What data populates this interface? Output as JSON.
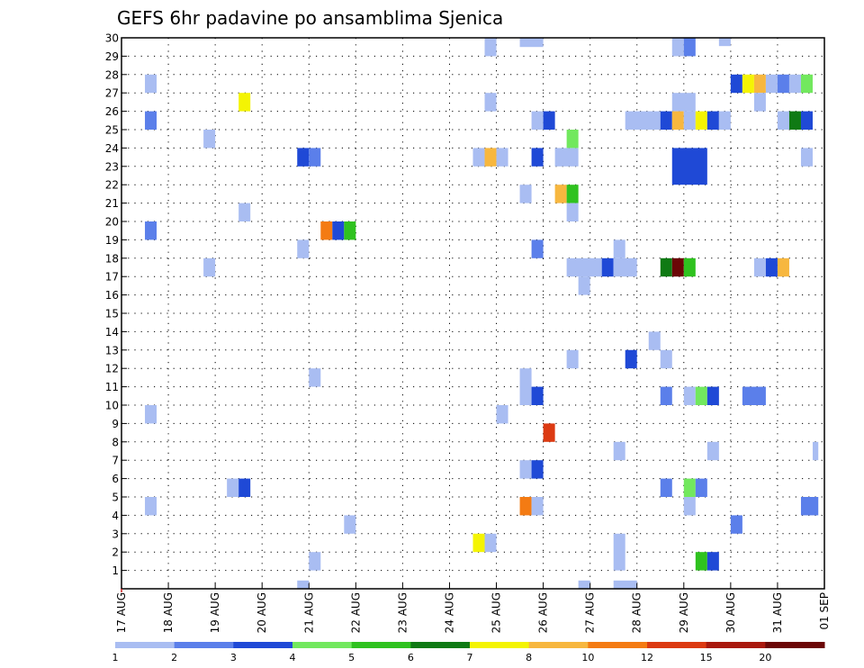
{
  "chart_data": {
    "type": "heatmap",
    "title": "GEFS 6hr padavine po ansamblima Sjenica",
    "x_ticks": [
      "17 AUG",
      "18 AUG",
      "19 AUG",
      "20 AUG",
      "21 AUG",
      "22 AUG",
      "23 AUG",
      "24 AUG",
      "25 AUG",
      "26 AUG",
      "27 AUG",
      "28 AUG",
      "29 AUG",
      "30 AUG",
      "31 AUG",
      "01 SEP"
    ],
    "y_ticks": [
      "1",
      "2",
      "3",
      "4",
      "5",
      "6",
      "7",
      "8",
      "9",
      "10",
      "11",
      "12",
      "13",
      "14",
      "15",
      "16",
      "17",
      "18",
      "19",
      "20",
      "21",
      "22",
      "23",
      "24",
      "25",
      "26",
      "27",
      "28",
      "29",
      "30"
    ],
    "x_unit": "days since 17 AUG",
    "ylim": [
      0,
      30
    ],
    "grid": true,
    "legend": {
      "placement": "bottom",
      "labels": [
        "1",
        "2",
        "3",
        "4",
        "5",
        "6",
        "7",
        "8",
        "10",
        "12",
        "15",
        "20"
      ],
      "colors": [
        "#a9bdf2",
        "#5b7fea",
        "#1f49d6",
        "#72e85e",
        "#2fc21f",
        "#0f7a14",
        "#f4f403",
        "#f7b73f",
        "#f47b13",
        "#dc3a12",
        "#a9190e",
        "#6b0707"
      ]
    },
    "cells": [
      {
        "x": 0.5,
        "y": 27,
        "w": 0.25,
        "h": 1,
        "color": "#a9bdf2"
      },
      {
        "x": 0.5,
        "y": 25,
        "w": 0.25,
        "h": 1,
        "color": "#5b7fea"
      },
      {
        "x": 0.5,
        "y": 19,
        "w": 0.25,
        "h": 1,
        "color": "#5b7fea"
      },
      {
        "x": 0.5,
        "y": 9,
        "w": 0.25,
        "h": 1,
        "color": "#a9bdf2"
      },
      {
        "x": 0.5,
        "y": 4,
        "w": 0.25,
        "h": 1,
        "color": "#a9bdf2"
      },
      {
        "x": 1.75,
        "y": 24,
        "w": 0.25,
        "h": 1,
        "color": "#a9bdf2"
      },
      {
        "x": 1.75,
        "y": 17,
        "w": 0.25,
        "h": 1,
        "color": "#a9bdf2"
      },
      {
        "x": 2.5,
        "y": 26,
        "w": 0.25,
        "h": 1,
        "color": "#f4f403"
      },
      {
        "x": 2.5,
        "y": 20,
        "w": 0.25,
        "h": 1,
        "color": "#a9bdf2"
      },
      {
        "x": 2.25,
        "y": 5,
        "w": 0.25,
        "h": 1,
        "color": "#a9bdf2"
      },
      {
        "x": 2.5,
        "y": 5,
        "w": 0.25,
        "h": 1,
        "color": "#1f49d6"
      },
      {
        "x": 3.75,
        "y": 23,
        "w": 0.25,
        "h": 1,
        "color": "#1f49d6"
      },
      {
        "x": 4.0,
        "y": 23,
        "w": 0.25,
        "h": 1,
        "color": "#5b7fea"
      },
      {
        "x": 3.75,
        "y": 18,
        "w": 0.25,
        "h": 1,
        "color": "#a9bdf2"
      },
      {
        "x": 4.25,
        "y": 19,
        "w": 0.25,
        "h": 1,
        "color": "#f47b13"
      },
      {
        "x": 4.5,
        "y": 19,
        "w": 0.25,
        "h": 1,
        "color": "#1f49d6"
      },
      {
        "x": 4.75,
        "y": 19,
        "w": 0.25,
        "h": 1,
        "color": "#2fc21f"
      },
      {
        "x": 4.0,
        "y": 11,
        "w": 0.25,
        "h": 1,
        "color": "#a9bdf2"
      },
      {
        "x": 4.75,
        "y": 3,
        "w": 0.25,
        "h": 1,
        "color": "#a9bdf2"
      },
      {
        "x": 4.0,
        "y": 1,
        "w": 0.25,
        "h": 1,
        "color": "#a9bdf2"
      },
      {
        "x": 3.75,
        "y": 0,
        "w": 0.25,
        "h": 0.45,
        "color": "#a9bdf2"
      },
      {
        "x": 7.75,
        "y": 29,
        "w": 0.25,
        "h": 1,
        "color": "#a9bdf2"
      },
      {
        "x": 7.75,
        "y": 26,
        "w": 0.25,
        "h": 1,
        "color": "#a9bdf2"
      },
      {
        "x": 7.5,
        "y": 23,
        "w": 0.25,
        "h": 1,
        "color": "#a9bdf2"
      },
      {
        "x": 7.75,
        "y": 23,
        "w": 0.25,
        "h": 1,
        "color": "#f7b73f"
      },
      {
        "x": 8.0,
        "y": 23,
        "w": 0.25,
        "h": 1,
        "color": "#a9bdf2"
      },
      {
        "x": 8.0,
        "y": 9,
        "w": 0.25,
        "h": 1,
        "color": "#a9bdf2"
      },
      {
        "x": 7.5,
        "y": 2,
        "w": 0.25,
        "h": 1,
        "color": "#f4f403"
      },
      {
        "x": 7.75,
        "y": 2,
        "w": 0.25,
        "h": 1,
        "color": "#a9bdf2"
      },
      {
        "x": 8.5,
        "y": 29.5,
        "w": 0.5,
        "h": 0.5,
        "color": "#a9bdf2"
      },
      {
        "x": 8.75,
        "y": 25,
        "w": 0.25,
        "h": 1,
        "color": "#a9bdf2"
      },
      {
        "x": 9.0,
        "y": 25,
        "w": 0.25,
        "h": 1,
        "color": "#1f49d6"
      },
      {
        "x": 8.75,
        "y": 23,
        "w": 0.25,
        "h": 1,
        "color": "#1f49d6"
      },
      {
        "x": 9.25,
        "y": 23,
        "w": 0.5,
        "h": 1,
        "color": "#a9bdf2"
      },
      {
        "x": 9.5,
        "y": 24,
        "w": 0.25,
        "h": 1,
        "color": "#72e85e"
      },
      {
        "x": 8.5,
        "y": 21,
        "w": 0.25,
        "h": 1,
        "color": "#a9bdf2"
      },
      {
        "x": 9.25,
        "y": 21,
        "w": 0.25,
        "h": 1,
        "color": "#f7b73f"
      },
      {
        "x": 9.5,
        "y": 21,
        "w": 0.25,
        "h": 1,
        "color": "#2fc21f"
      },
      {
        "x": 9.5,
        "y": 20,
        "w": 0.25,
        "h": 1,
        "color": "#a9bdf2"
      },
      {
        "x": 8.75,
        "y": 18,
        "w": 0.25,
        "h": 1,
        "color": "#5b7fea"
      },
      {
        "x": 9.5,
        "y": 17,
        "w": 0.75,
        "h": 1,
        "color": "#a9bdf2"
      },
      {
        "x": 10.25,
        "y": 17,
        "w": 0.25,
        "h": 1,
        "color": "#1f49d6"
      },
      {
        "x": 10.5,
        "y": 17,
        "w": 0.5,
        "h": 1,
        "color": "#a9bdf2"
      },
      {
        "x": 9.75,
        "y": 16,
        "w": 0.25,
        "h": 1,
        "color": "#a9bdf2"
      },
      {
        "x": 9.5,
        "y": 12,
        "w": 0.25,
        "h": 1,
        "color": "#a9bdf2"
      },
      {
        "x": 8.5,
        "y": 10,
        "w": 0.25,
        "h": 2,
        "color": "#a9bdf2"
      },
      {
        "x": 8.75,
        "y": 10,
        "w": 0.25,
        "h": 1,
        "color": "#1f49d6"
      },
      {
        "x": 9.0,
        "y": 8,
        "w": 0.25,
        "h": 1,
        "color": "#dc3a12"
      },
      {
        "x": 8.5,
        "y": 6,
        "w": 0.25,
        "h": 1,
        "color": "#a9bdf2"
      },
      {
        "x": 8.75,
        "y": 6,
        "w": 0.25,
        "h": 1,
        "color": "#1f49d6"
      },
      {
        "x": 8.5,
        "y": 4,
        "w": 0.25,
        "h": 1,
        "color": "#f47b13"
      },
      {
        "x": 8.75,
        "y": 4,
        "w": 0.25,
        "h": 1,
        "color": "#a9bdf2"
      },
      {
        "x": 9.75,
        "y": 0,
        "w": 0.25,
        "h": 0.45,
        "color": "#a9bdf2"
      },
      {
        "x": 10.5,
        "y": 18,
        "w": 0.25,
        "h": 1,
        "color": "#a9bdf2"
      },
      {
        "x": 10.5,
        "y": 7,
        "w": 0.25,
        "h": 1,
        "color": "#a9bdf2"
      },
      {
        "x": 10.5,
        "y": 1,
        "w": 0.25,
        "h": 2,
        "color": "#a9bdf2"
      },
      {
        "x": 10.5,
        "y": 0,
        "w": 0.5,
        "h": 0.45,
        "color": "#a9bdf2"
      },
      {
        "x": 10.75,
        "y": 12,
        "w": 0.25,
        "h": 1,
        "color": "#1f49d6"
      },
      {
        "x": 11.25,
        "y": 13,
        "w": 0.25,
        "h": 1,
        "color": "#a9bdf2"
      },
      {
        "x": 11.75,
        "y": 29,
        "w": 0.25,
        "h": 1,
        "color": "#a9bdf2"
      },
      {
        "x": 12.0,
        "y": 29,
        "w": 0.25,
        "h": 1,
        "color": "#5b7fea"
      },
      {
        "x": 11.75,
        "y": 26,
        "w": 0.5,
        "h": 1,
        "color": "#a9bdf2"
      },
      {
        "x": 10.75,
        "y": 25,
        "w": 0.75,
        "h": 1,
        "color": "#a9bdf2"
      },
      {
        "x": 11.5,
        "y": 25,
        "w": 0.25,
        "h": 1,
        "color": "#1f49d6"
      },
      {
        "x": 11.75,
        "y": 25,
        "w": 0.25,
        "h": 1,
        "color": "#f7b73f"
      },
      {
        "x": 12.0,
        "y": 25,
        "w": 0.25,
        "h": 1,
        "color": "#a9bdf2"
      },
      {
        "x": 12.25,
        "y": 25,
        "w": 0.25,
        "h": 1,
        "color": "#f4f403"
      },
      {
        "x": 12.5,
        "y": 25,
        "w": 0.25,
        "h": 1,
        "color": "#1f49d6"
      },
      {
        "x": 11.75,
        "y": 22,
        "w": 0.75,
        "h": 2,
        "color": "#1f49d6"
      },
      {
        "x": 11.5,
        "y": 17,
        "w": 0.25,
        "h": 1,
        "color": "#0f7a14"
      },
      {
        "x": 11.75,
        "y": 17,
        "w": 0.25,
        "h": 1,
        "color": "#6b0707"
      },
      {
        "x": 12.0,
        "y": 17,
        "w": 0.25,
        "h": 1,
        "color": "#2fc21f"
      },
      {
        "x": 11.5,
        "y": 12,
        "w": 0.25,
        "h": 1,
        "color": "#a9bdf2"
      },
      {
        "x": 11.5,
        "y": 10,
        "w": 0.25,
        "h": 1,
        "color": "#5b7fea"
      },
      {
        "x": 12.0,
        "y": 10,
        "w": 0.25,
        "h": 1,
        "color": "#a9bdf2"
      },
      {
        "x": 12.25,
        "y": 10,
        "w": 0.25,
        "h": 1,
        "color": "#72e85e"
      },
      {
        "x": 12.5,
        "y": 10,
        "w": 0.25,
        "h": 1,
        "color": "#1f49d6"
      },
      {
        "x": 12.5,
        "y": 7,
        "w": 0.25,
        "h": 1,
        "color": "#a9bdf2"
      },
      {
        "x": 11.5,
        "y": 5,
        "w": 0.25,
        "h": 1,
        "color": "#5b7fea"
      },
      {
        "x": 12.0,
        "y": 5,
        "w": 0.25,
        "h": 1,
        "color": "#72e85e"
      },
      {
        "x": 12.25,
        "y": 5,
        "w": 0.25,
        "h": 1,
        "color": "#5b7fea"
      },
      {
        "x": 12.0,
        "y": 4,
        "w": 0.25,
        "h": 1,
        "color": "#a9bdf2"
      },
      {
        "x": 12.25,
        "y": 1,
        "w": 0.25,
        "h": 1,
        "color": "#2fc21f"
      },
      {
        "x": 12.5,
        "y": 1,
        "w": 0.25,
        "h": 1,
        "color": "#1f49d6"
      },
      {
        "x": 12.75,
        "y": 29.55,
        "w": 0.25,
        "h": 0.45,
        "color": "#a9bdf2"
      },
      {
        "x": 13.0,
        "y": 27,
        "w": 0.25,
        "h": 1,
        "color": "#1f49d6"
      },
      {
        "x": 13.25,
        "y": 27,
        "w": 0.25,
        "h": 1,
        "color": "#f4f403"
      },
      {
        "x": 13.5,
        "y": 27,
        "w": 0.25,
        "h": 1,
        "color": "#f7b73f"
      },
      {
        "x": 13.75,
        "y": 27,
        "w": 0.25,
        "h": 1,
        "color": "#a9bdf2"
      },
      {
        "x": 14.0,
        "y": 27,
        "w": 0.25,
        "h": 1,
        "color": "#5b7fea"
      },
      {
        "x": 14.25,
        "y": 27,
        "w": 0.25,
        "h": 1,
        "color": "#a9bdf2"
      },
      {
        "x": 14.5,
        "y": 27,
        "w": 0.25,
        "h": 1,
        "color": "#72e85e"
      },
      {
        "x": 13.5,
        "y": 26,
        "w": 0.25,
        "h": 1,
        "color": "#a9bdf2"
      },
      {
        "x": 12.75,
        "y": 25,
        "w": 0.25,
        "h": 1,
        "color": "#a9bdf2"
      },
      {
        "x": 14.0,
        "y": 25,
        "w": 0.25,
        "h": 1,
        "color": "#a9bdf2"
      },
      {
        "x": 14.25,
        "y": 25,
        "w": 0.25,
        "h": 1,
        "color": "#0f7a14"
      },
      {
        "x": 14.5,
        "y": 25,
        "w": 0.25,
        "h": 1,
        "color": "#1f49d6"
      },
      {
        "x": 14.5,
        "y": 23,
        "w": 0.25,
        "h": 1,
        "color": "#a9bdf2"
      },
      {
        "x": 13.5,
        "y": 17,
        "w": 0.25,
        "h": 1,
        "color": "#a9bdf2"
      },
      {
        "x": 13.75,
        "y": 17,
        "w": 0.25,
        "h": 1,
        "color": "#1f49d6"
      },
      {
        "x": 14.0,
        "y": 17,
        "w": 0.25,
        "h": 1,
        "color": "#f7b73f"
      },
      {
        "x": 13.25,
        "y": 10,
        "w": 0.5,
        "h": 1,
        "color": "#5b7fea"
      },
      {
        "x": 13.0,
        "y": 3,
        "w": 0.25,
        "h": 1,
        "color": "#5b7fea"
      },
      {
        "x": 14.75,
        "y": 7,
        "w": 0.12,
        "h": 1,
        "color": "#a9bdf2"
      },
      {
        "x": 14.5,
        "y": 4,
        "w": 0.37,
        "h": 1,
        "color": "#5b7fea"
      }
    ]
  }
}
